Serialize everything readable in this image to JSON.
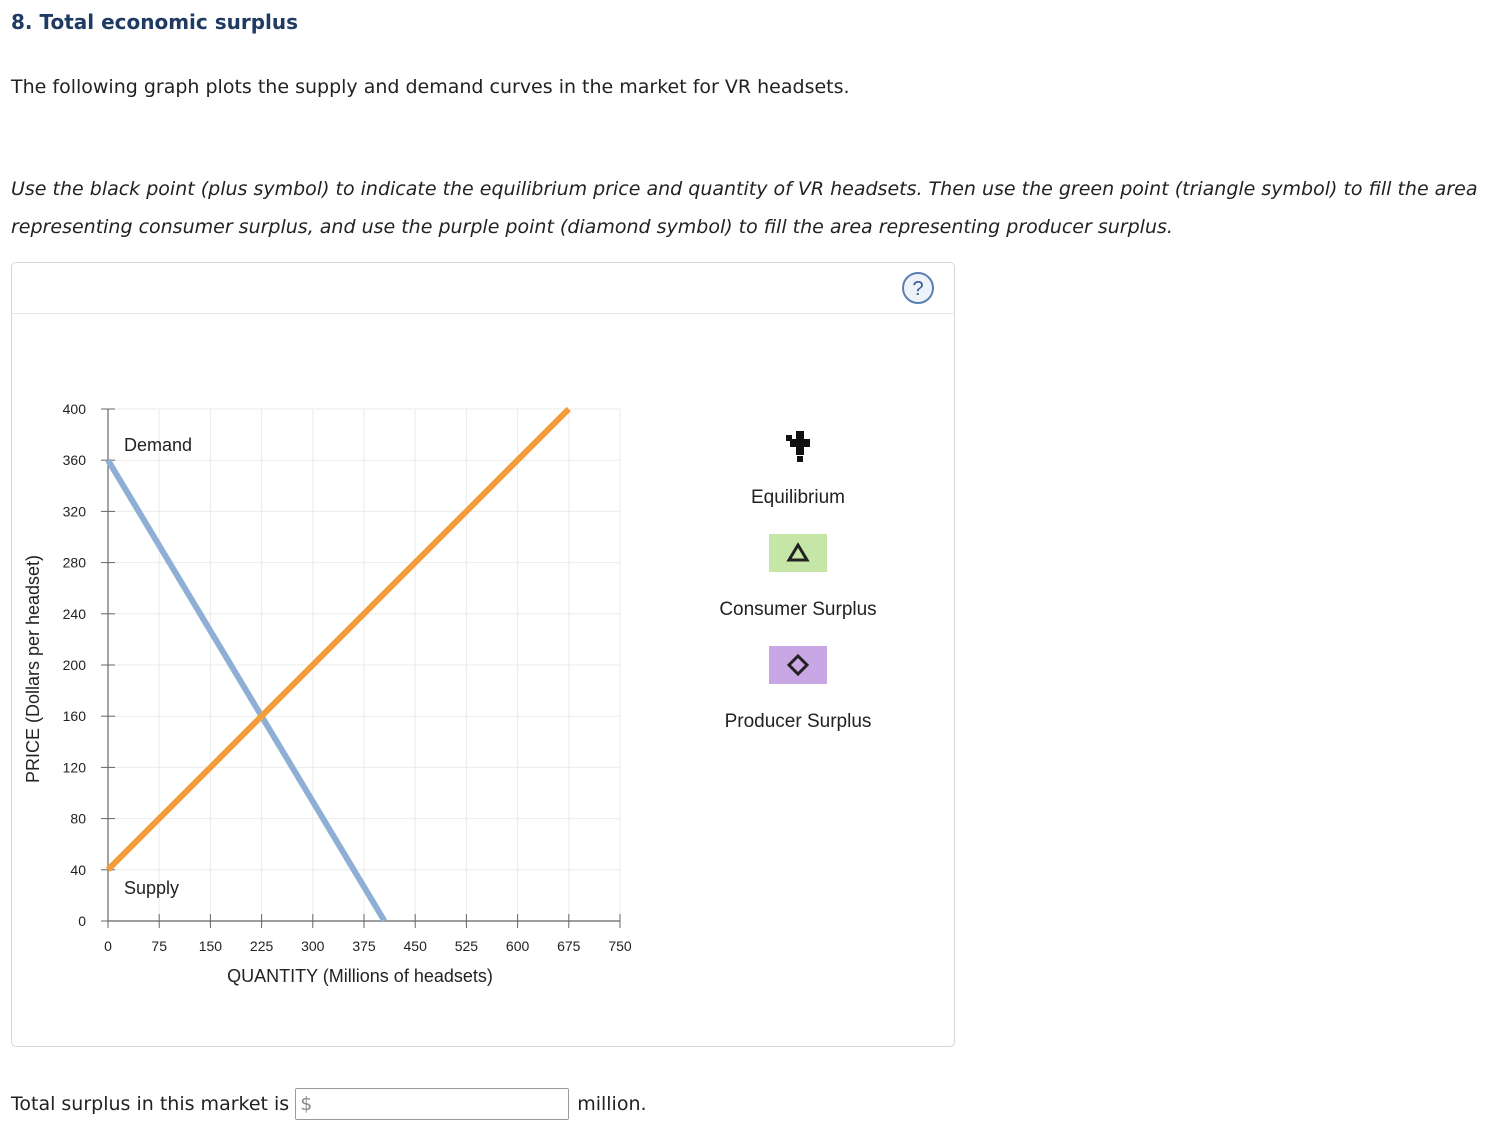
{
  "question": {
    "title": "8. Total economic surplus",
    "intro": "The following graph plots the supply and demand curves in the market for VR headsets.",
    "instructions": "Use the black point (plus symbol) to indicate the equilibrium price and quantity of VR headsets. Then use the green point (triangle symbol) to fill the area representing consumer surplus, and use the purple point (diamond symbol) to fill the area representing producer surplus."
  },
  "tool": {
    "help_icon": "question-mark-icon",
    "legend": [
      {
        "label": "Equilibrium",
        "icon": "plus-icon",
        "color": "#000000"
      },
      {
        "label": "Consumer Surplus",
        "icon": "triangle-icon",
        "color": "#c6e6a8"
      },
      {
        "label": "Producer Surplus",
        "icon": "diamond-icon",
        "color": "#c9a6e4"
      }
    ]
  },
  "chart_data": {
    "type": "line",
    "xlabel": "QUANTITY (Millions of headsets)",
    "ylabel": "PRICE (Dollars per headset)",
    "xlim": [
      0,
      750
    ],
    "ylim": [
      0,
      400
    ],
    "x_ticks": [
      0,
      75,
      150,
      225,
      300,
      375,
      450,
      525,
      600,
      675,
      750
    ],
    "y_ticks": [
      0,
      40,
      80,
      120,
      160,
      200,
      240,
      280,
      320,
      360,
      400
    ],
    "grid": true,
    "series": [
      {
        "name": "Demand",
        "color": "#8fb0d4",
        "points": [
          [
            0,
            360
          ],
          [
            405,
            0
          ]
        ]
      },
      {
        "name": "Supply",
        "color": "#f39c3a",
        "points": [
          [
            0,
            40
          ],
          [
            675,
            400
          ]
        ]
      }
    ]
  },
  "answer": {
    "prefix": "Total surplus in this market is",
    "currency": "$",
    "value": "",
    "suffix": "million."
  }
}
